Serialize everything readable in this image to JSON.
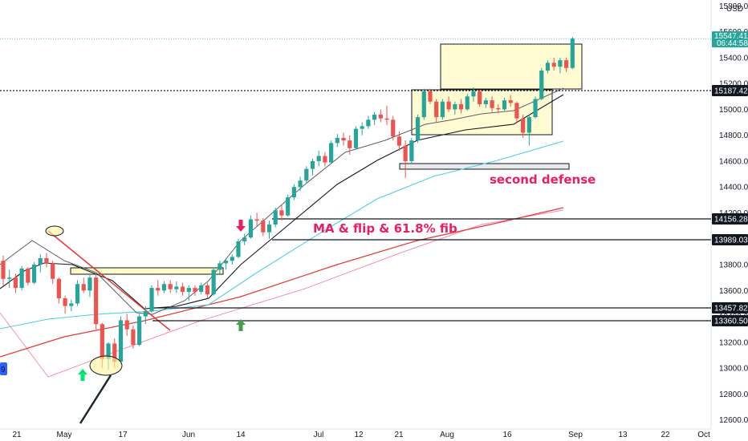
{
  "chart_data": {
    "type": "candlestick",
    "currency": "USD",
    "x_ticks": [
      "21",
      "May",
      "17",
      "Jun",
      "14",
      "Jul",
      "12",
      "21",
      "Aug",
      "16",
      "Sep",
      "13",
      "22",
      "Oct"
    ],
    "y_ticks": [
      "12600.00",
      "12800.00",
      "13000.00",
      "13200.00",
      "13400.00",
      "13600.00",
      "13800.00",
      "14000.00",
      "14200.00",
      "14400.00",
      "14600.00",
      "14800.00",
      "15000.00",
      "15200.00",
      "15400.00",
      "15600.00",
      "15800.00"
    ],
    "last_price": {
      "value": "15547.41",
      "countdown": "06:44:58"
    },
    "levels": [
      {
        "label": "15187.42",
        "style": "dotted"
      },
      {
        "label": "14156.28",
        "style": "solid"
      },
      {
        "label": "13989.03",
        "style": "solid"
      },
      {
        "label": "13457.82",
        "style": "solid"
      },
      {
        "label": "13360.50",
        "style": "solid"
      }
    ],
    "annotations": [
      "MA & flip & 61.8% fib",
      "second defense"
    ],
    "left_marker": "9",
    "colors": {
      "up": "#26a69a",
      "down": "#ef5350",
      "annotation": "#e91e63",
      "arrow_up": "#00e676",
      "ma_black": "#131722",
      "ma_blue": "#4dd0e1",
      "ma_red": "#e53935",
      "ma_pink": "#f48fb1",
      "zone": "#fff9c4",
      "trendline": "#e53935"
    },
    "candles": [
      [
        13830,
        13870,
        13640,
        13690
      ],
      [
        13690,
        13760,
        13620,
        13700
      ],
      [
        13700,
        13730,
        13580,
        13620
      ],
      [
        13620,
        13790,
        13600,
        13770
      ],
      [
        13770,
        13780,
        13640,
        13660
      ],
      [
        13660,
        13820,
        13650,
        13800
      ],
      [
        13800,
        13880,
        13740,
        13850
      ],
      [
        13850,
        13890,
        13780,
        13810
      ],
      [
        13810,
        13830,
        13650,
        13690
      ],
      [
        13690,
        13700,
        13500,
        13540
      ],
      [
        13540,
        13560,
        13420,
        13480
      ],
      [
        13480,
        13530,
        13440,
        13500
      ],
      [
        13500,
        13680,
        13480,
        13650
      ],
      [
        13650,
        13700,
        13580,
        13600
      ],
      [
        13600,
        13720,
        13550,
        13700
      ],
      [
        13700,
        13720,
        13300,
        13340
      ],
      [
        13340,
        13350,
        13000,
        13070
      ],
      [
        13070,
        13200,
        12990,
        13190
      ],
      [
        13190,
        13230,
        13000,
        13050
      ],
      [
        13050,
        13400,
        13030,
        13370
      ],
      [
        13370,
        13420,
        13250,
        13300
      ],
      [
        13300,
        13330,
        13150,
        13180
      ],
      [
        13180,
        13420,
        13170,
        13400
      ],
      [
        13400,
        13480,
        13340,
        13440
      ],
      [
        13440,
        13640,
        13430,
        13620
      ],
      [
        13620,
        13680,
        13560,
        13600
      ],
      [
        13600,
        13670,
        13580,
        13650
      ],
      [
        13650,
        13680,
        13580,
        13610
      ],
      [
        13610,
        13670,
        13580,
        13630
      ],
      [
        13630,
        13660,
        13560,
        13590
      ],
      [
        13590,
        13640,
        13520,
        13620
      ],
      [
        13620,
        13640,
        13560,
        13590
      ],
      [
        13590,
        13660,
        13570,
        13640
      ],
      [
        13640,
        13660,
        13540,
        13570
      ],
      [
        13570,
        13780,
        13560,
        13760
      ],
      [
        13760,
        13830,
        13730,
        13810
      ],
      [
        13810,
        13850,
        13760,
        13830
      ],
      [
        13830,
        13880,
        13800,
        13860
      ],
      [
        13860,
        14000,
        13850,
        13980
      ],
      [
        13980,
        14040,
        13950,
        14010
      ],
      [
        14010,
        14180,
        14000,
        14150
      ],
      [
        14150,
        14200,
        14100,
        14140
      ],
      [
        14140,
        14160,
        14020,
        14050
      ],
      [
        14050,
        14140,
        14000,
        14110
      ],
      [
        14110,
        14240,
        14090,
        14220
      ],
      [
        14220,
        14260,
        14140,
        14180
      ],
      [
        14180,
        14340,
        14170,
        14320
      ],
      [
        14320,
        14420,
        14300,
        14400
      ],
      [
        14400,
        14480,
        14370,
        14450
      ],
      [
        14450,
        14560,
        14430,
        14540
      ],
      [
        14540,
        14620,
        14490,
        14600
      ],
      [
        14600,
        14680,
        14560,
        14640
      ],
      [
        14640,
        14670,
        14560,
        14590
      ],
      [
        14590,
        14760,
        14580,
        14740
      ],
      [
        14740,
        14810,
        14710,
        14780
      ],
      [
        14780,
        14820,
        14720,
        14760
      ],
      [
        14760,
        14800,
        14650,
        14700
      ],
      [
        14700,
        14870,
        14690,
        14850
      ],
      [
        14850,
        14900,
        14800,
        14870
      ],
      [
        14870,
        14950,
        14850,
        14920
      ],
      [
        14920,
        14980,
        14880,
        14960
      ],
      [
        14960,
        15000,
        14900,
        14930
      ],
      [
        14930,
        15030,
        14880,
        14920
      ],
      [
        14920,
        14950,
        14760,
        14790
      ],
      [
        14790,
        14830,
        14680,
        14720
      ],
      [
        14720,
        14760,
        14470,
        14600
      ],
      [
        14600,
        14780,
        14580,
        14760
      ],
      [
        14760,
        14960,
        14740,
        14940
      ],
      [
        14940,
        15160,
        14920,
        15140
      ],
      [
        15140,
        15160,
        15040,
        15060
      ],
      [
        15060,
        15080,
        14900,
        14940
      ],
      [
        14940,
        15080,
        14920,
        15060
      ],
      [
        15060,
        15100,
        14980,
        15000
      ],
      [
        15000,
        15060,
        14960,
        15040
      ],
      [
        15040,
        15080,
        14970,
        15000
      ],
      [
        15000,
        15120,
        14990,
        15100
      ],
      [
        15100,
        15170,
        15060,
        15140
      ],
      [
        15140,
        15150,
        15020,
        15040
      ],
      [
        15040,
        15090,
        15010,
        15070
      ],
      [
        15070,
        15100,
        14980,
        15010
      ],
      [
        15010,
        15040,
        14970,
        15000
      ],
      [
        15000,
        15090,
        14990,
        15070
      ],
      [
        15070,
        15110,
        15020,
        15050
      ],
      [
        15050,
        15060,
        14900,
        14930
      ],
      [
        14930,
        14960,
        14780,
        14820
      ],
      [
        14820,
        14960,
        14720,
        14940
      ],
      [
        14940,
        15100,
        14930,
        15080
      ],
      [
        15080,
        15320,
        15070,
        15300
      ],
      [
        15300,
        15380,
        15280,
        15360
      ],
      [
        15360,
        15400,
        15300,
        15330
      ],
      [
        15330,
        15400,
        15280,
        15380
      ],
      [
        15380,
        15400,
        15290,
        15320
      ],
      [
        15320,
        15560,
        15310,
        15547
      ]
    ]
  }
}
